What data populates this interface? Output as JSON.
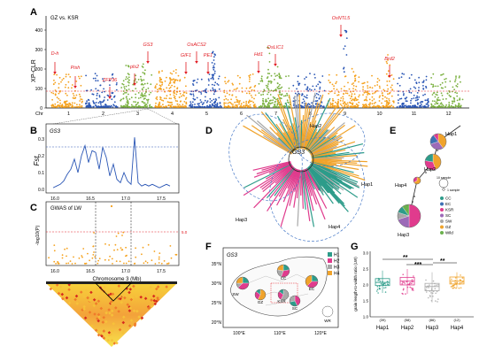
{
  "panels": {
    "A": {
      "letter": "A",
      "comparison": "GZ vs. KSR",
      "ylabel": "XP-CLR",
      "yticks": [
        "0",
        "100",
        "200",
        "300",
        "400"
      ],
      "chr_label": "Chr",
      "chromosomes": [
        "1",
        "2",
        "3",
        "4",
        "5",
        "6",
        "7",
        "8",
        "9",
        "10",
        "11",
        "12"
      ],
      "chr_colors": [
        "#f5a11c",
        "#2a56b5",
        "#7ab03f",
        "#f5a11c",
        "#2a56b5",
        "#f5a11c",
        "#7ab03f",
        "#2a56b5",
        "#f5a11c",
        "#f5a11c",
        "#2a56b5",
        "#7ab03f"
      ],
      "genes": [
        {
          "name": "D-h",
          "chr": 1
        },
        {
          "name": "Pish",
          "chr": 2
        },
        {
          "name": "ZFP36",
          "chr": 3
        },
        {
          "name": "pls2",
          "chr": 3
        },
        {
          "name": "GS3",
          "chr": 3
        },
        {
          "name": "GIF1",
          "chr": 4
        },
        {
          "name": "OsACS2",
          "chr": 4
        },
        {
          "name": "PE1",
          "chr": 4
        },
        {
          "name": "Hd1",
          "chr": 6
        },
        {
          "name": "OsLIC1",
          "chr": 7
        },
        {
          "name": "OsNTL5",
          "chr": 9
        },
        {
          "name": "Brd2",
          "chr": 10
        }
      ]
    },
    "B": {
      "letter": "B",
      "gene": "GS3",
      "ylabel": "Fst",
      "yticks": [
        "0.0",
        "0.1",
        "0.2",
        "0.3"
      ],
      "xticks": [
        "16.0",
        "16.5",
        "17.0",
        "17.5"
      ]
    },
    "C": {
      "letter": "C",
      "title": "GWAS of LW",
      "ylabel": "-log10(P)",
      "threshold_label": "5.0",
      "xticks": [
        "16.0",
        "16.5",
        "17.0",
        "17.5"
      ],
      "xlabel": "Chromosome 3 (Mb)"
    },
    "D": {
      "letter": "D",
      "center_label": "GS3",
      "haplotypes": [
        "Hap1",
        "Hap2",
        "Hap3",
        "Hap4"
      ]
    },
    "E": {
      "letter": "E",
      "nodes": [
        "Hap1",
        "Hap2",
        "Hap3",
        "Hap4"
      ],
      "size_legend": [
        "10 sample",
        "1 sample"
      ],
      "legend": [
        {
          "name": "CC",
          "color": "#2d9c8a"
        },
        {
          "name": "EC",
          "color": "#3d6fb4"
        },
        {
          "name": "KSR",
          "color": "#e03b8d"
        },
        {
          "name": "SC",
          "color": "#9c6ab8"
        },
        {
          "name": "SW",
          "color": "#a8a8a8"
        },
        {
          "name": "GZ",
          "color": "#f0a32b"
        },
        {
          "name": "Wild",
          "color": "#6ab04c"
        }
      ]
    },
    "F": {
      "letter": "F",
      "gene": "GS3",
      "lat_ticks": [
        "35°N",
        "30°N",
        "25°N",
        "20°N"
      ],
      "lon_ticks": [
        "100°E",
        "110°E",
        "120°E"
      ],
      "regions": [
        "CC",
        "EC",
        "SC",
        "SW",
        "GZ",
        "KSR",
        "WR"
      ],
      "legend": [
        {
          "name": "H1",
          "color": "#2d9c8a"
        },
        {
          "name": "H2",
          "color": "#e03b8d"
        },
        {
          "name": "H3",
          "color": "#a8a8a8"
        },
        {
          "name": "H4",
          "color": "#f0a32b"
        }
      ]
    },
    "G": {
      "letter": "G",
      "ylabel": "grain length-to-width ratio (LW)",
      "yticks": [
        "1.0",
        "1.5",
        "2.0",
        "2.5",
        "3.0"
      ],
      "groups": [
        {
          "name": "Hap1",
          "n": "(39)",
          "color": "#2d9c8a",
          "median": 2.08,
          "q1": 1.98,
          "q3": 2.2,
          "lo": 1.75,
          "hi": 2.45
        },
        {
          "name": "Hap2",
          "n": "(58)",
          "color": "#e03b8d",
          "median": 2.12,
          "q1": 2.0,
          "q3": 2.24,
          "lo": 1.72,
          "hi": 2.5
        },
        {
          "name": "Hap3",
          "n": "(86)",
          "color": "#a8a8a8",
          "median": 1.95,
          "q1": 1.82,
          "q3": 2.05,
          "lo": 1.45,
          "hi": 2.4
        },
        {
          "name": "Hap4",
          "n": "(12)",
          "color": "#f0a32b",
          "median": 2.12,
          "q1": 2.03,
          "q3": 2.25,
          "lo": 1.9,
          "hi": 2.4
        }
      ],
      "sig": [
        "**",
        "***",
        "**"
      ]
    }
  }
}
